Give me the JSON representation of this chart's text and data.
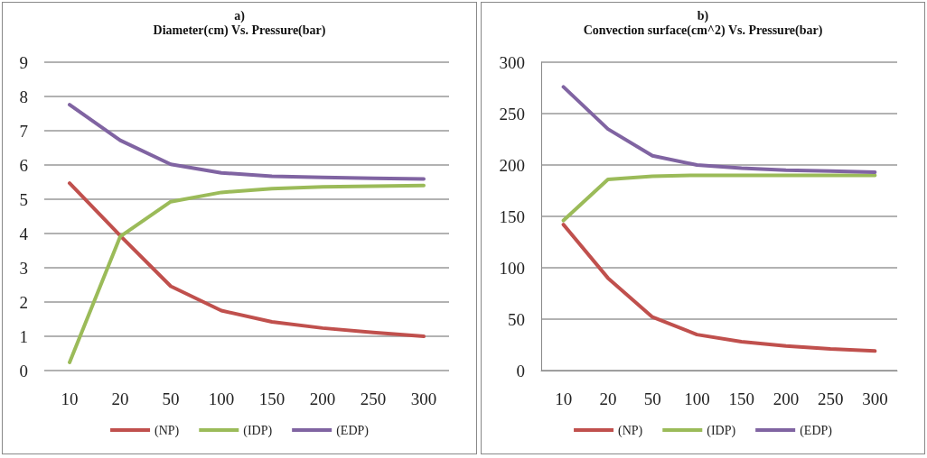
{
  "chart_data": [
    {
      "type": "line",
      "title": "a)",
      "subtitle": "Diameter(cm) Vs. Pressure(bar)",
      "categories": [
        "10",
        "20",
        "50",
        "100",
        "150",
        "200",
        "250",
        "300"
      ],
      "series": [
        {
          "name": "(NP)",
          "color": "#c0504d",
          "values": [
            5.47,
            3.94,
            2.46,
            1.75,
            1.42,
            1.24,
            1.11,
            1.0
          ]
        },
        {
          "name": "(IDP)",
          "color": "#9bbb59",
          "values": [
            0.24,
            3.91,
            4.93,
            5.2,
            5.31,
            5.36,
            5.38,
            5.4
          ]
        },
        {
          "name": "(EDP)",
          "color": "#8064a2",
          "values": [
            7.76,
            6.72,
            6.02,
            5.77,
            5.67,
            5.64,
            5.61,
            5.59
          ]
        }
      ],
      "ylim": [
        0,
        9
      ],
      "yticks": [
        0,
        1,
        2,
        3,
        4,
        5,
        6,
        7,
        8,
        9
      ],
      "grid": "y",
      "legend": "bottom",
      "marker": "none",
      "line_style": "solid"
    },
    {
      "type": "line",
      "title": "b)",
      "subtitle": "Convection surface(cm^2) Vs. Pressure(bar)",
      "categories": [
        "10",
        "20",
        "50",
        "100",
        "150",
        "200",
        "250",
        "300"
      ],
      "series": [
        {
          "name": "(NP)",
          "color": "#c0504d",
          "values": [
            142,
            90,
            52,
            35,
            28,
            24,
            21,
            19
          ]
        },
        {
          "name": "(IDP)",
          "color": "#9bbb59",
          "values": [
            146,
            186,
            189,
            190,
            190,
            190,
            190,
            190
          ]
        },
        {
          "name": "(EDP)",
          "color": "#8064a2",
          "values": [
            276,
            235,
            209,
            200,
            197,
            195,
            194,
            193
          ]
        }
      ],
      "ylim": [
        0,
        300
      ],
      "yticks": [
        0,
        50,
        100,
        150,
        200,
        250,
        300
      ],
      "grid": "y",
      "legend": "bottom",
      "marker": "none",
      "line_style": "solid"
    }
  ]
}
